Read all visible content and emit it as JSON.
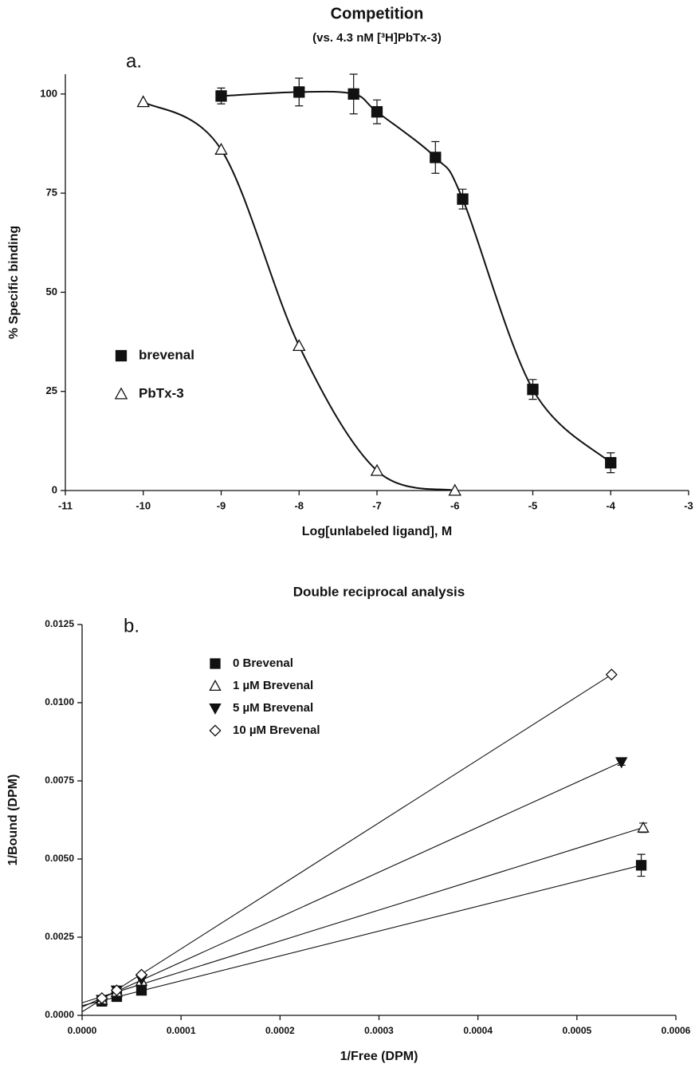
{
  "chart_data": [
    {
      "type": "scatter",
      "title": "Competition",
      "subtitle": "(vs. 4.3 nM [³H]PbTx-3)",
      "annotation": "a.",
      "x_label": "Log[unlabeled ligand], M",
      "y_label": "% Specific binding",
      "xlim": [
        -11,
        -3
      ],
      "xticks": [
        -11,
        -10,
        -9,
        -8,
        -7,
        -6,
        -5,
        -4,
        -3
      ],
      "ylim": [
        0,
        105
      ],
      "yticks": [
        0,
        25,
        50,
        75,
        100
      ],
      "legend": "left",
      "curve": "smooth",
      "series": [
        {
          "name": "brevenal",
          "marker": "square",
          "color": "#111111",
          "filled": true,
          "x": [
            -9,
            -8,
            -7.3,
            -7,
            -6.25,
            -5.9,
            -5,
            -4
          ],
          "values": [
            99.5,
            100.5,
            100,
            95.5,
            84,
            73.5,
            25.5,
            7
          ],
          "errors": [
            2,
            3.5,
            5,
            3,
            4,
            2.5,
            2.5,
            2.5
          ]
        },
        {
          "name": "PbTx-3",
          "marker": "triangle",
          "color": "#111111",
          "filled": false,
          "x": [
            -10,
            -9,
            -8,
            -7,
            -6
          ],
          "values": [
            98,
            86,
            36.5,
            5,
            0
          ]
        }
      ]
    },
    {
      "type": "scatter",
      "title": "Double reciprocal analysis",
      "annotation": "b.",
      "x_label": "1/Free (DPM)",
      "y_label": "1/Bound (DPM)",
      "xlim": [
        0,
        0.0006
      ],
      "xticks": [
        {
          "value": 0,
          "label": "0.0000"
        },
        {
          "value": 0.0001,
          "label": "0.0001"
        },
        {
          "value": 0.0002,
          "label": "0.0002"
        },
        {
          "value": 0.0003,
          "label": "0.0003"
        },
        {
          "value": 0.0004,
          "label": "0.0004"
        },
        {
          "value": 0.0005,
          "label": "0.0005"
        },
        {
          "value": 0.0006,
          "label": "0.0006"
        }
      ],
      "ylim": [
        0,
        0.0125
      ],
      "yticks": [
        {
          "value": 0,
          "label": "0.0000"
        },
        {
          "value": 0.0025,
          "label": "0.0025"
        },
        {
          "value": 0.005,
          "label": "0.0050"
        },
        {
          "value": 0.0075,
          "label": "0.0075"
        },
        {
          "value": 0.01,
          "label": "0.0100"
        },
        {
          "value": 0.0125,
          "label": "0.0125"
        }
      ],
      "legend": "upper left",
      "curve": "linear-fit",
      "series": [
        {
          "name": "0 Brevenal",
          "marker": "square",
          "color": "#111111",
          "filled": true,
          "x": [
            2e-05,
            3.5e-05,
            6e-05,
            0.000565
          ],
          "values": [
            0.00045,
            0.0006,
            0.0008,
            0.0048
          ],
          "errors": [
            null,
            null,
            null,
            0.00035
          ]
        },
        {
          "name": "1 µM Brevenal",
          "marker": "triangle",
          "color": "#111111",
          "filled": false,
          "x": [
            2e-05,
            3.5e-05,
            6e-05,
            0.000567
          ],
          "values": [
            0.0005,
            0.00075,
            0.0011,
            0.006
          ],
          "errors": [
            null,
            null,
            null,
            0.00015
          ]
        },
        {
          "name": "5 µM Brevenal",
          "marker": "triangle-down",
          "color": "#111111",
          "filled": true,
          "x": [
            2e-05,
            3.5e-05,
            6e-05,
            0.000545
          ],
          "values": [
            0.0005,
            0.0008,
            0.00115,
            0.0081
          ],
          "errors": [
            null,
            null,
            null,
            0.0001
          ]
        },
        {
          "name": "10 µM Brevenal",
          "marker": "diamond",
          "color": "#111111",
          "filled": false,
          "x": [
            2e-05,
            3.5e-05,
            6e-05,
            0.000535
          ],
          "values": [
            0.00055,
            0.0008,
            0.0013,
            0.0109
          ]
        }
      ]
    }
  ]
}
